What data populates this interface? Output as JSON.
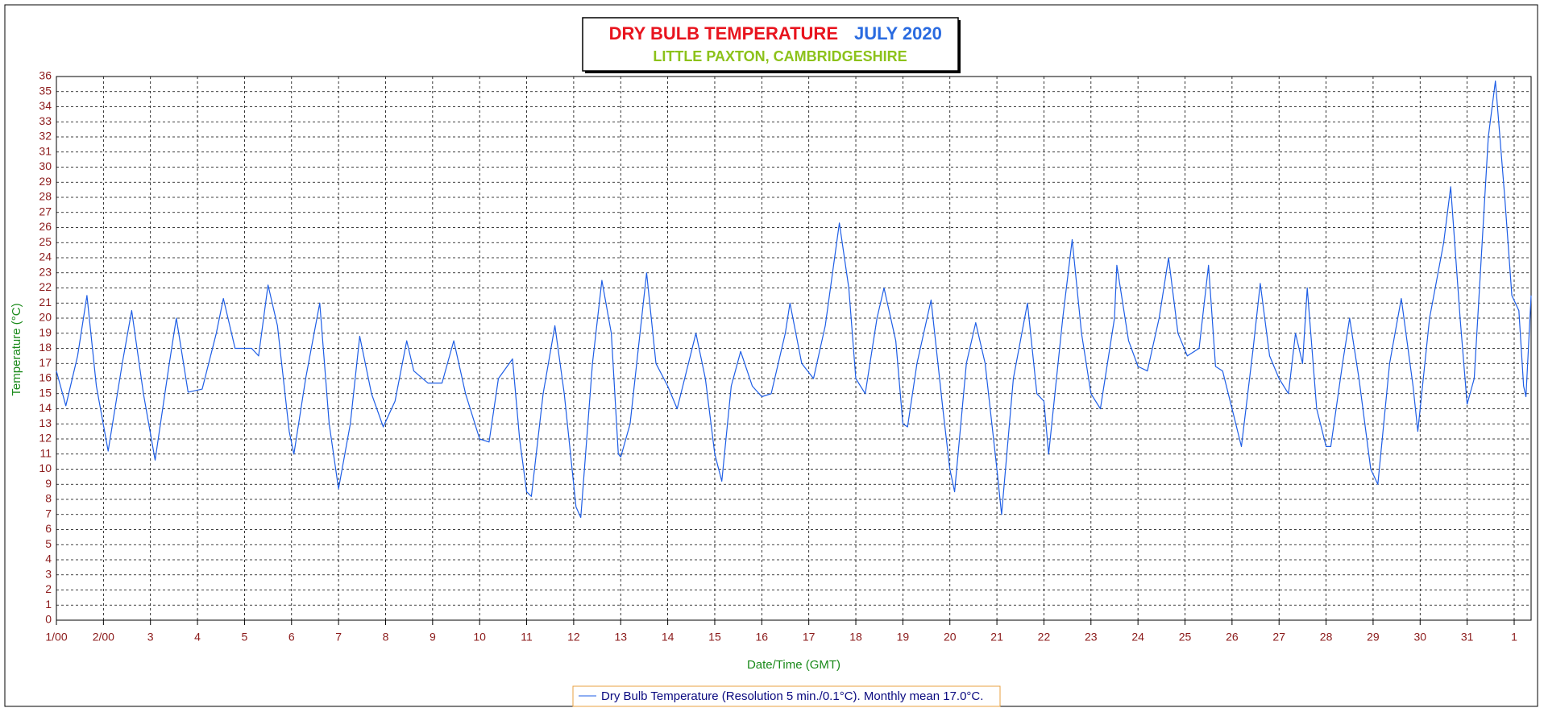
{
  "chart_data": {
    "type": "line",
    "title": "DRY BULB TEMPERATURE",
    "title_period": "JULY 2020",
    "subtitle": "LITTLE PAXTON, CAMBRIDGESHIRE",
    "x_label": "Date/Time (GMT)",
    "y_label": "Temperature (°C)",
    "xlim": [
      0,
      31.36
    ],
    "ylim": [
      0,
      36
    ],
    "xticks": [
      {
        "value": 0,
        "label": "1/00"
      },
      {
        "value": 1,
        "label": "2/00"
      },
      {
        "value": 2,
        "label": "3"
      },
      {
        "value": 3,
        "label": "4"
      },
      {
        "value": 4,
        "label": "5"
      },
      {
        "value": 5,
        "label": "6"
      },
      {
        "value": 6,
        "label": "7"
      },
      {
        "value": 7,
        "label": "8"
      },
      {
        "value": 8,
        "label": "9"
      },
      {
        "value": 9,
        "label": "10"
      },
      {
        "value": 10,
        "label": "11"
      },
      {
        "value": 11,
        "label": "12"
      },
      {
        "value": 12,
        "label": "13"
      },
      {
        "value": 13,
        "label": "14"
      },
      {
        "value": 14,
        "label": "15"
      },
      {
        "value": 15,
        "label": "16"
      },
      {
        "value": 16,
        "label": "17"
      },
      {
        "value": 17,
        "label": "18"
      },
      {
        "value": 18,
        "label": "19"
      },
      {
        "value": 19,
        "label": "20"
      },
      {
        "value": 20,
        "label": "21"
      },
      {
        "value": 21,
        "label": "22"
      },
      {
        "value": 22,
        "label": "23"
      },
      {
        "value": 23,
        "label": "24"
      },
      {
        "value": 24,
        "label": "25"
      },
      {
        "value": 25,
        "label": "26"
      },
      {
        "value": 26,
        "label": "27"
      },
      {
        "value": 27,
        "label": "28"
      },
      {
        "value": 28,
        "label": "29"
      },
      {
        "value": 29,
        "label": "30"
      },
      {
        "value": 30,
        "label": "31"
      },
      {
        "value": 31,
        "label": "1"
      }
    ],
    "yticks": [
      0,
      1,
      2,
      3,
      4,
      5,
      6,
      7,
      8,
      9,
      10,
      11,
      12,
      13,
      14,
      15,
      16,
      17,
      18,
      19,
      20,
      21,
      22,
      23,
      24,
      25,
      26,
      27,
      28,
      29,
      30,
      31,
      32,
      33,
      34,
      35,
      36
    ],
    "grid": true,
    "x": [
      0,
      0.2,
      0.45,
      0.65,
      0.85,
      1.1,
      1.4,
      1.6,
      1.85,
      2.1,
      2.4,
      2.55,
      2.8,
      3.1,
      3.4,
      3.55,
      3.8,
      4.15,
      4.3,
      4.5,
      4.7,
      4.95,
      5.05,
      5.3,
      5.6,
      5.8,
      6.0,
      6.25,
      6.45,
      6.7,
      6.95,
      7.2,
      7.45,
      7.6,
      7.9,
      8.2,
      8.45,
      8.7,
      9.0,
      9.2,
      9.4,
      9.7,
      9.85,
      10.0,
      10.1,
      10.35,
      10.6,
      10.8,
      11.05,
      11.15,
      11.4,
      11.6,
      11.8,
      11.95,
      12.0,
      12.2,
      12.55,
      12.75,
      13.0,
      13.2,
      13.6,
      13.8,
      14.0,
      14.15,
      14.35,
      14.55,
      14.8,
      15.0,
      15.2,
      15.5,
      15.6,
      15.85,
      16.1,
      16.35,
      16.65,
      16.85,
      17.0,
      17.2,
      17.45,
      17.6,
      17.85,
      18.0,
      18.1,
      18.3,
      18.6,
      18.85,
      19.0,
      19.1,
      19.35,
      19.55,
      19.75,
      20.0,
      20.1,
      20.35,
      20.65,
      20.85,
      21.0,
      21.1,
      21.4,
      21.6,
      21.8,
      22.0,
      22.2,
      22.5,
      22.55,
      22.8,
      23.0,
      23.2,
      23.45,
      23.65,
      23.85,
      24.05,
      24.3,
      24.5,
      24.65,
      24.8,
      25.0,
      25.2,
      25.45,
      25.6,
      25.8,
      26.0,
      26.2,
      26.35,
      26.5,
      26.6,
      26.8,
      27.0,
      27.1,
      27.35,
      27.5,
      27.7,
      27.95,
      28.1,
      28.35,
      28.6,
      28.85,
      28.95,
      29.2,
      29.5,
      29.65,
      29.85,
      30.0,
      30.15,
      30.45,
      30.6,
      30.8,
      30.95,
      31.1,
      31.2,
      31.25,
      31.36
    ],
    "series": [
      {
        "name": "Dry Bulb Temperature (Resolution 5 min./0.1°C). Monthly mean 17.0°C.",
        "color": "#1e5ee6",
        "values": [
          16.5,
          14.2,
          17.5,
          21.5,
          15.5,
          11.2,
          17,
          20.5,
          15,
          10.6,
          17,
          20,
          15.1,
          15.3,
          19,
          21.3,
          18,
          18,
          17.5,
          22.2,
          19.5,
          12.5,
          11,
          16,
          21,
          13,
          8.7,
          13,
          18.8,
          15,
          12.8,
          14.5,
          18.5,
          16.5,
          15.7,
          15.7,
          18.5,
          15,
          12,
          11.8,
          16,
          17.3,
          12,
          8.5,
          8.2,
          15,
          19.5,
          15,
          7.5,
          6.8,
          17,
          22.5,
          19,
          11,
          10.8,
          13,
          23,
          17,
          15.5,
          14,
          19,
          16,
          11,
          9.2,
          15.5,
          17.8,
          15.5,
          14.8,
          15,
          19,
          21,
          17,
          16,
          19.5,
          26.3,
          22,
          16,
          15,
          20,
          22,
          18.5,
          13,
          12.8,
          17,
          21.2,
          14,
          10,
          8.5,
          17,
          19.7,
          17,
          10,
          7,
          16,
          21,
          15,
          14.5,
          11,
          20,
          25.2,
          19,
          15,
          14,
          20,
          23.5,
          18.5,
          16.8,
          16.5,
          20,
          24,
          19,
          17.5,
          18,
          23.5,
          16.8,
          16.5,
          14,
          11.5,
          18,
          22.3,
          17.5,
          16,
          15,
          19,
          17,
          22,
          14,
          11.5,
          11.5,
          17,
          20,
          16,
          10,
          9,
          17,
          21.3,
          15.5,
          12.5,
          20,
          25,
          28.7,
          20,
          14.3,
          16,
          32,
          35.7,
          28,
          21.5,
          20.5,
          15.5,
          14.8,
          21.5
        ]
      }
    ]
  }
}
